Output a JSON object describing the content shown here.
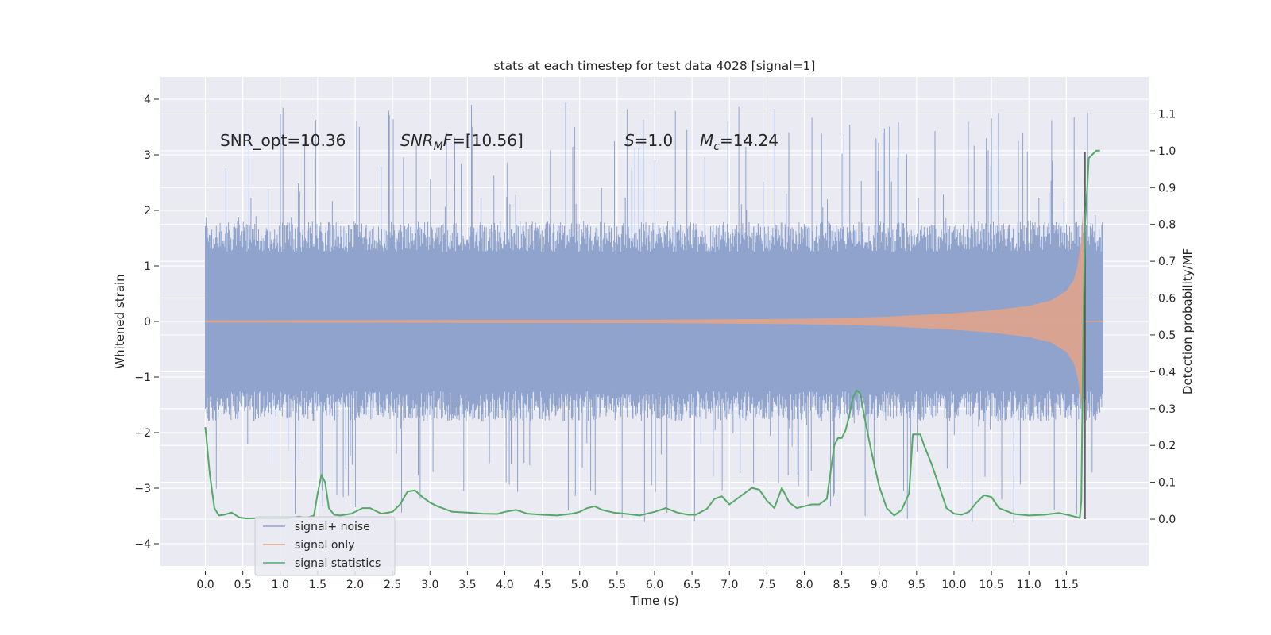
{
  "chart_data": {
    "type": "line",
    "title": "stats at each timestep for test data 4028 [signal=1]",
    "xlabel": "Time (s)",
    "ylabel": "Whitened strain",
    "y2label": "Detection probability/MF",
    "xlim": [
      -0.6,
      12.6
    ],
    "ylim": [
      -4.4,
      4.4
    ],
    "y2lim": [
      -0.127,
      1.2
    ],
    "x_ticks": [
      "0.0",
      "0.5",
      "1.0",
      "1.5",
      "2.0",
      "2.5",
      "3.0",
      "3.5",
      "4.0",
      "4.5",
      "5.0",
      "5.5",
      "6.0",
      "6.5",
      "7.0",
      "7.5",
      "8.0",
      "8.5",
      "9.0",
      "9.5",
      "10.0",
      "10.5",
      "11.0",
      "11.5"
    ],
    "y_ticks": [
      "4",
      "3",
      "2",
      "1",
      "0",
      "−1",
      "−2",
      "−3",
      "−4"
    ],
    "y2_ticks": [
      "1.1",
      "1.0",
      "0.9",
      "0.8",
      "0.7",
      "0.6",
      "0.5",
      "0.4",
      "0.3",
      "0.2",
      "0.1",
      "0.0"
    ],
    "grid": true,
    "legend_position": "lower-left",
    "annotations": {
      "snr_opt": "SNR_opt=10.36",
      "snr_mf_sym": "SNR",
      "snr_mf_sub": "M",
      "snr_mf_sym2": "F",
      "snr_mf_val": "=[10.56]",
      "s_sym": "S",
      "s_val": "=1.0",
      "mc_sym": "M",
      "mc_sub": "c",
      "mc_val": "=14.24"
    },
    "series": [
      {
        "name": "signal+ noise",
        "color": "#8fa3cc",
        "kind": "noise",
        "x_range": [
          0.0,
          11.99
        ],
        "band": [
          -1.25,
          1.25
        ],
        "typical_peak": 1.8,
        "max": 3.95,
        "min": -3.65
      },
      {
        "name": "signal only",
        "color": "#e0a38a",
        "kind": "chirp",
        "x_range": [
          0.0,
          11.74
        ],
        "envelope": {
          "x": [
            0.0,
            3.0,
            6.0,
            8.0,
            9.0,
            10.0,
            10.5,
            11.0,
            11.3,
            11.5,
            11.6,
            11.65,
            11.7,
            11.72,
            11.74
          ],
          "y": [
            0.02,
            0.025,
            0.03,
            0.05,
            0.08,
            0.15,
            0.2,
            0.28,
            0.38,
            0.55,
            0.75,
            1.0,
            1.5,
            2.0,
            0.5
          ]
        }
      },
      {
        "name": "signal statistics",
        "color": "#55a868",
        "kind": "probability",
        "x": [
          0.0,
          0.06,
          0.12,
          0.18,
          0.25,
          0.35,
          0.45,
          0.55,
          0.7,
          0.9,
          1.1,
          1.25,
          1.35,
          1.45,
          1.5,
          1.55,
          1.6,
          1.65,
          1.72,
          1.8,
          1.95,
          2.1,
          2.2,
          2.35,
          2.5,
          2.6,
          2.7,
          2.8,
          2.9,
          3.0,
          3.1,
          3.3,
          3.5,
          3.7,
          3.9,
          4.0,
          4.15,
          4.3,
          4.5,
          4.7,
          4.9,
          5.0,
          5.1,
          5.2,
          5.3,
          5.45,
          5.6,
          5.8,
          6.0,
          6.15,
          6.3,
          6.45,
          6.55,
          6.7,
          6.8,
          6.9,
          7.0,
          7.1,
          7.3,
          7.4,
          7.5,
          7.6,
          7.7,
          7.8,
          7.9,
          8.0,
          8.1,
          8.2,
          8.3,
          8.4,
          8.45,
          8.5,
          8.55,
          8.6,
          8.65,
          8.7,
          8.75,
          8.8,
          8.9,
          9.0,
          9.1,
          9.2,
          9.3,
          9.4,
          9.45,
          9.5,
          9.55,
          9.6,
          9.7,
          9.8,
          9.9,
          10.0,
          10.1,
          10.2,
          10.3,
          10.35,
          10.4,
          10.5,
          10.6,
          10.8,
          11.0,
          11.2,
          11.4,
          11.55,
          11.65,
          11.68,
          11.7,
          11.72,
          11.74,
          11.75,
          11.78,
          11.8,
          11.85,
          11.9,
          11.95
        ],
        "values": [
          0.25,
          0.12,
          0.03,
          0.01,
          0.012,
          0.018,
          0.005,
          0.002,
          0.003,
          0.002,
          0.003,
          0.007,
          0.004,
          0.01,
          0.07,
          0.12,
          0.1,
          0.03,
          0.012,
          0.01,
          0.015,
          0.03,
          0.03,
          0.015,
          0.02,
          0.04,
          0.075,
          0.078,
          0.06,
          0.045,
          0.035,
          0.02,
          0.018,
          0.015,
          0.014,
          0.02,
          0.025,
          0.015,
          0.012,
          0.01,
          0.015,
          0.02,
          0.03,
          0.035,
          0.025,
          0.018,
          0.015,
          0.01,
          0.02,
          0.03,
          0.018,
          0.012,
          0.012,
          0.028,
          0.055,
          0.062,
          0.04,
          0.055,
          0.085,
          0.08,
          0.05,
          0.03,
          0.085,
          0.045,
          0.03,
          0.035,
          0.04,
          0.04,
          0.055,
          0.2,
          0.22,
          0.22,
          0.24,
          0.28,
          0.33,
          0.35,
          0.34,
          0.28,
          0.18,
          0.09,
          0.03,
          0.01,
          0.025,
          0.07,
          0.23,
          0.23,
          0.23,
          0.2,
          0.15,
          0.09,
          0.03,
          0.015,
          0.012,
          0.02,
          0.045,
          0.055,
          0.065,
          0.06,
          0.03,
          0.014,
          0.01,
          0.012,
          0.017,
          0.01,
          0.005,
          0.003,
          0.05,
          0.4,
          0.7,
          0.8,
          0.9,
          0.98,
          0.99,
          1.0,
          1.0
        ]
      }
    ],
    "vline_x": 11.75
  }
}
